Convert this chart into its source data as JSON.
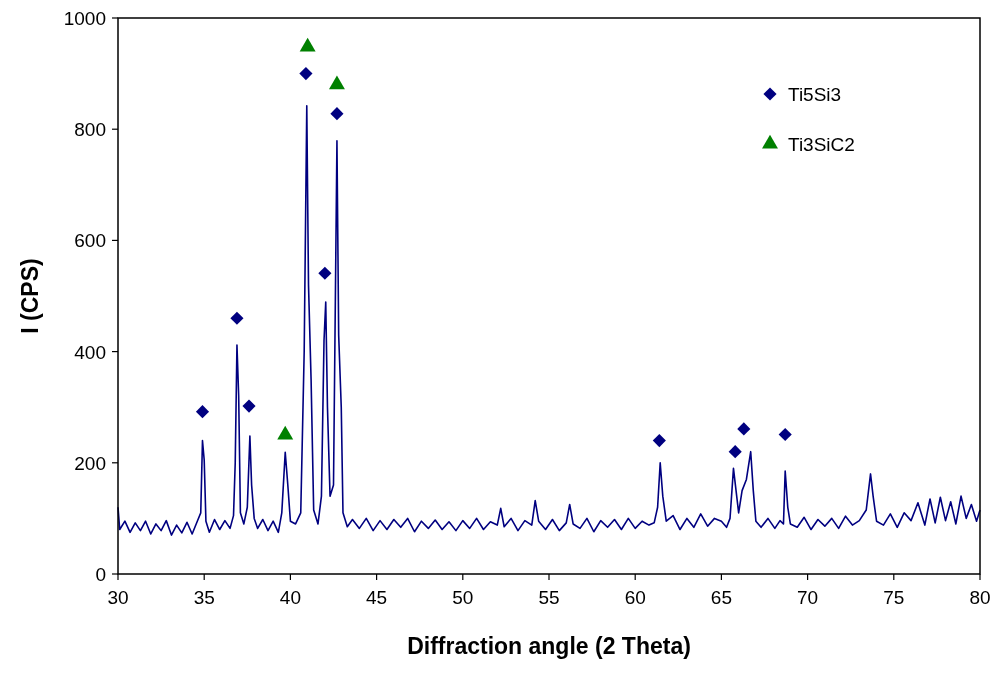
{
  "chart_data": {
    "type": "line",
    "xlabel": "Diffraction angle (2 Theta)",
    "ylabel": "I (CPS)",
    "xlim": [
      30,
      80
    ],
    "ylim": [
      0,
      1000
    ],
    "xticks": [
      30,
      35,
      40,
      45,
      50,
      55,
      60,
      65,
      70,
      75,
      80
    ],
    "yticks": [
      0,
      200,
      400,
      600,
      800,
      1000
    ],
    "legend": "top right",
    "grid": false,
    "series": [
      {
        "type": "line",
        "color": "#000080",
        "marker": "none",
        "x": [
          30,
          30.1,
          30.4,
          30.7,
          31,
          31.3,
          31.6,
          31.9,
          32.2,
          32.5,
          32.8,
          33.1,
          33.4,
          33.7,
          34,
          34.3,
          34.6,
          34.8,
          34.9,
          35,
          35.1,
          35.3,
          35.6,
          35.9,
          36.2,
          36.5,
          36.7,
          36.8,
          36.9,
          37,
          37.1,
          37.3,
          37.5,
          37.65,
          37.75,
          37.9,
          38.1,
          38.4,
          38.7,
          39,
          39.3,
          39.5,
          39.7,
          39.85,
          40,
          40.3,
          40.6,
          40.8,
          40.95,
          41.05,
          41.2,
          41.35,
          41.6,
          41.8,
          41.95,
          42.05,
          42.15,
          42.3,
          42.5,
          42.7,
          42.8,
          42.95,
          43.05,
          43.3,
          43.6,
          44,
          44.4,
          44.8,
          45.2,
          45.6,
          46,
          46.4,
          46.8,
          47.2,
          47.6,
          48,
          48.4,
          48.8,
          49.2,
          49.6,
          50,
          50.4,
          50.8,
          51.2,
          51.6,
          52,
          52.2,
          52.4,
          52.8,
          53.2,
          53.6,
          54,
          54.2,
          54.4,
          54.8,
          55.2,
          55.6,
          56,
          56.2,
          56.4,
          56.8,
          57.2,
          57.6,
          58,
          58.4,
          58.8,
          59.2,
          59.6,
          60,
          60.4,
          60.8,
          61.1,
          61.3,
          61.45,
          61.6,
          61.8,
          62.2,
          62.6,
          63,
          63.4,
          63.8,
          64.2,
          64.6,
          65,
          65.3,
          65.5,
          65.7,
          65.85,
          66,
          66.2,
          66.45,
          66.7,
          66.85,
          67,
          67.3,
          67.7,
          68.1,
          68.4,
          68.6,
          68.7,
          68.85,
          69,
          69.4,
          69.8,
          70.2,
          70.6,
          71,
          71.4,
          71.8,
          72.2,
          72.6,
          73,
          73.4,
          73.65,
          73.8,
          74,
          74.4,
          74.8,
          75.2,
          75.6,
          76,
          76.4,
          76.8,
          77.1,
          77.4,
          77.7,
          78,
          78.3,
          78.6,
          78.9,
          79.2,
          79.5,
          79.8,
          80
        ],
        "values": [
          120,
          80,
          95,
          75,
          92,
          78,
          95,
          72,
          90,
          78,
          96,
          70,
          88,
          74,
          93,
          72,
          95,
          110,
          240,
          205,
          95,
          75,
          98,
          80,
          96,
          82,
          105,
          200,
          412,
          320,
          110,
          90,
          120,
          248,
          160,
          100,
          82,
          98,
          78,
          95,
          75,
          110,
          219,
          160,
          95,
          90,
          110,
          400,
          842,
          520,
          350,
          115,
          90,
          140,
          420,
          489,
          300,
          140,
          160,
          779,
          430,
          300,
          110,
          85,
          98,
          82,
          100,
          78,
          96,
          80,
          98,
          84,
          100,
          76,
          95,
          82,
          97,
          80,
          94,
          78,
          96,
          82,
          100,
          80,
          94,
          88,
          118,
          85,
          100,
          78,
          96,
          88,
          132,
          95,
          80,
          98,
          78,
          92,
          125,
          90,
          82,
          100,
          76,
          96,
          84,
          98,
          80,
          100,
          82,
          95,
          88,
          92,
          120,
          200,
          140,
          95,
          105,
          80,
          100,
          84,
          108,
          86,
          100,
          95,
          84,
          100,
          190,
          150,
          110,
          150,
          170,
          220,
          150,
          95,
          84,
          100,
          82,
          96,
          90,
          185,
          120,
          90,
          84,
          102,
          80,
          98,
          86,
          100,
          82,
          104,
          88,
          96,
          115,
          180,
          140,
          95,
          88,
          108,
          84,
          110,
          96,
          128,
          88,
          135,
          92,
          138,
          96,
          130,
          90,
          140,
          100,
          125,
          95,
          115
        ]
      },
      {
        "type": "scatter",
        "name": "Ti5Si3",
        "color": "#000080",
        "marker": "diamond",
        "x": [
          34.9,
          36.9,
          37.6,
          40.9,
          42.0,
          42.7,
          61.4,
          65.8,
          66.3,
          68.7
        ],
        "values": [
          292,
          460,
          302,
          900,
          541,
          828,
          240,
          220,
          261,
          251
        ]
      },
      {
        "type": "scatter",
        "name": "Ti3SiC2",
        "color": "#008000",
        "marker": "triangle",
        "x": [
          39.7,
          41.0,
          42.7
        ],
        "values": [
          250,
          948,
          880
        ]
      }
    ]
  }
}
